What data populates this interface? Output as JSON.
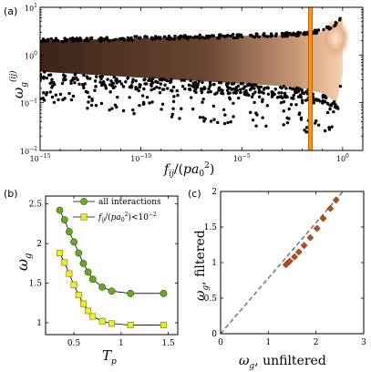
{
  "chart_data": [
    {
      "type": "scatter",
      "panel_label": "(a)",
      "xlabel": "f_ij/(pa_0^2)",
      "ylabel": "ω_g^(ij)",
      "xscale": "log",
      "yscale": "log",
      "xlim": [
        1e-15,
        10
      ],
      "ylim": [
        0.01,
        10
      ],
      "x_ticks": [
        "10^-15",
        "10^-10",
        "10^-5",
        "10^0"
      ],
      "y_ticks": [
        "10^-2",
        "10^-1",
        "10^0",
        "10^1"
      ],
      "threshold_line": {
        "x": 0.01,
        "color": "#ff9900"
      },
      "density_color": "#f5c8a0",
      "point_color": "#000000",
      "band": {
        "log_x": [
          -15,
          -13,
          -11,
          -9,
          -7,
          -5,
          -3,
          -2,
          -1,
          -0.3,
          0
        ],
        "center_log_y": [
          0.1,
          0.1,
          0.12,
          0.14,
          0.16,
          0.18,
          0.2,
          0.23,
          0.3,
          0.5,
          0.6
        ],
        "upper_log_y": [
          0.3,
          0.32,
          0.34,
          0.36,
          0.38,
          0.4,
          0.42,
          0.45,
          0.5,
          0.65,
          0.8
        ],
        "lower_log_y": [
          -0.35,
          -0.4,
          -0.45,
          -0.5,
          -0.55,
          -0.6,
          -0.65,
          -0.7,
          -0.8,
          -1.0,
          -0.4
        ],
        "tail_lower_log_y": [
          -1.0,
          -1.1,
          -1.2,
          -1.3,
          -1.4,
          -1.5,
          -1.5,
          -1.6,
          -1.7,
          -1.6,
          -0.8
        ]
      }
    },
    {
      "type": "line",
      "panel_label": "(b)",
      "xlabel": "T_p",
      "ylabel": "ω_g",
      "xlim": [
        0.2,
        1.6
      ],
      "ylim": [
        0.85,
        2.6
      ],
      "x_ticks": [
        0.5,
        1,
        1.5
      ],
      "y_ticks": [
        1,
        1.5,
        2,
        2.5
      ],
      "series": [
        {
          "name": "all interactions",
          "color": "#66aa22",
          "marker": "circle",
          "x": [
            0.35,
            0.4,
            0.45,
            0.5,
            0.55,
            0.6,
            0.65,
            0.7,
            0.8,
            0.9,
            1.1,
            1.45
          ],
          "y": [
            2.42,
            2.3,
            2.15,
            2.02,
            1.88,
            1.75,
            1.64,
            1.55,
            1.45,
            1.4,
            1.37,
            1.37
          ]
        },
        {
          "name": "f_ij/(pa_0^2)<10^-2",
          "color": "#eeee22",
          "marker": "square",
          "x": [
            0.35,
            0.4,
            0.45,
            0.5,
            0.55,
            0.6,
            0.65,
            0.7,
            0.8,
            0.9,
            1.1,
            1.45
          ],
          "y": [
            1.88,
            1.76,
            1.62,
            1.48,
            1.35,
            1.24,
            1.15,
            1.08,
            1.02,
            0.99,
            0.97,
            0.97
          ]
        }
      ]
    },
    {
      "type": "scatter",
      "panel_label": "(c)",
      "xlabel": "ω_g, unfiltered",
      "ylabel": "ω_g, filtered",
      "xlim": [
        0,
        3
      ],
      "ylim": [
        0,
        2
      ],
      "x_ticks": [
        0,
        1,
        2,
        3
      ],
      "y_ticks": [
        0,
        0.5,
        1,
        1.5,
        2
      ],
      "reference_line": {
        "slope": 0.78,
        "intercept": 0,
        "style": "dashed",
        "color": "#777777"
      },
      "points": {
        "marker": "diamond",
        "color": "#b5501a",
        "x": [
          1.37,
          1.4,
          1.45,
          1.55,
          1.64,
          1.75,
          1.88,
          2.02,
          2.15,
          2.3,
          2.42
        ],
        "y": [
          0.97,
          0.99,
          1.02,
          1.08,
          1.15,
          1.24,
          1.35,
          1.48,
          1.62,
          1.76,
          1.88
        ]
      }
    }
  ]
}
